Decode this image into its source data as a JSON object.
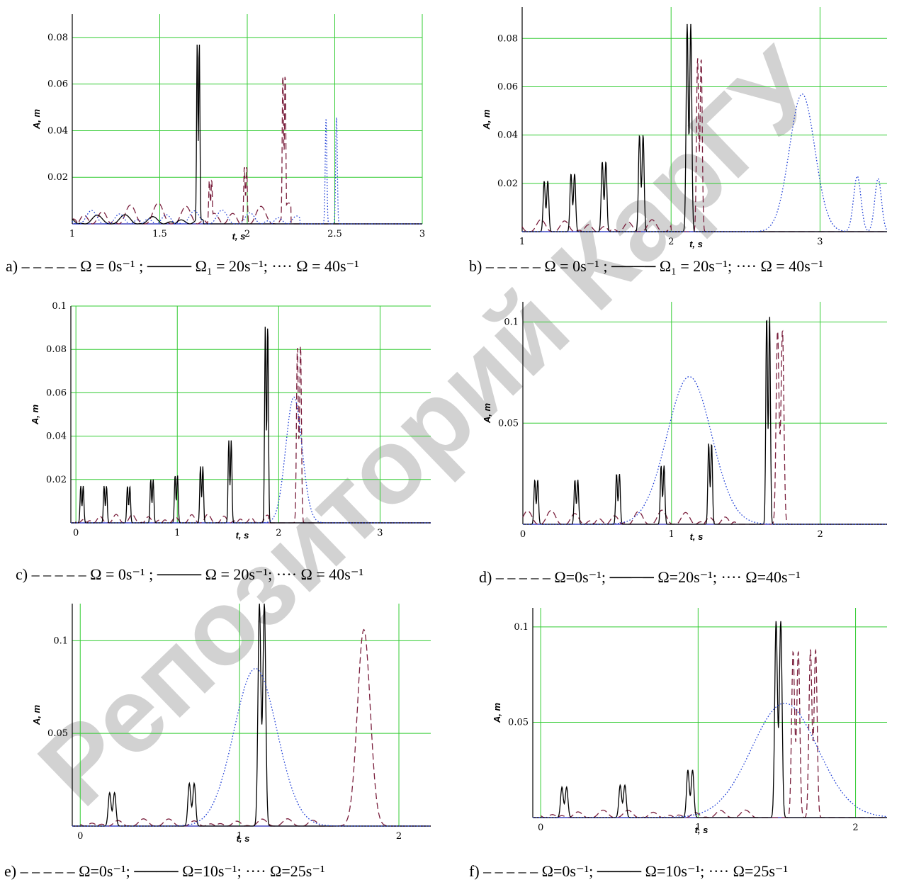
{
  "watermark": "Репозиторий КарГУ",
  "colors": {
    "grid": "#33cc33",
    "omega0": "#7a1f3d",
    "omega20": "#000000",
    "omega40": "#1f3fd6",
    "axis": "#2222aa"
  },
  "chart_data": [
    {
      "id": "a",
      "type": "line",
      "xlabel": "t, s",
      "ylabel": "A, m",
      "xlim": [
        1,
        3
      ],
      "ylim": [
        0,
        0.09
      ],
      "xticks": [
        "1",
        "1.5",
        "2",
        "2.5",
        "3"
      ],
      "xtick_values": [
        1,
        1.5,
        2,
        2.5,
        3
      ],
      "yticks": [
        "0.02",
        "0.04",
        "0.06",
        "0.08"
      ],
      "ytick_values": [
        0.02,
        0.04,
        0.06,
        0.08
      ],
      "caption": {
        "prefix": "a)",
        "s1": "Ω = 0s⁻¹ ;",
        "s2": "Ω₁ = 20s⁻¹;",
        "s3": "Ω = 40s⁻¹"
      },
      "series": [
        {
          "style": "dashed",
          "color_key": "omega0",
          "noise": 0.009,
          "noise_range": [
            1.0,
            2.25
          ],
          "peaks": [
            [
              1.79,
              0.019,
              0.012
            ],
            [
              1.99,
              0.025,
              0.012
            ],
            [
              2.21,
              0.065,
              0.012
            ]
          ]
        },
        {
          "style": "solid",
          "color_key": "omega20",
          "noise": 0.004,
          "noise_range": [
            1.0,
            1.75
          ],
          "peaks": [
            [
              1.72,
              0.078,
              0.011
            ]
          ]
        },
        {
          "style": "dotted",
          "color_key": "omega40",
          "noise": 0.006,
          "noise_range": [
            1.0,
            2.3
          ],
          "peaks": [
            [
              2.45,
              0.046,
              0.009
            ],
            [
              2.51,
              0.047,
              0.009
            ]
          ]
        }
      ]
    },
    {
      "id": "b",
      "type": "line",
      "xlabel": "t, s",
      "ylabel": "A, m",
      "xlim": [
        1,
        3.45
      ],
      "ylim": [
        0,
        0.093
      ],
      "xticks": [
        "1",
        "2",
        "3"
      ],
      "xtick_values": [
        1,
        2,
        3
      ],
      "yticks": [
        "0.02",
        "0.04",
        "0.06",
        "0.08"
      ],
      "ytick_values": [
        0.02,
        0.04,
        0.06,
        0.08
      ],
      "caption": {
        "prefix": "b)",
        "s1": "Ω = 0s⁻¹ ;",
        "s2": "Ω₁ = 20s⁻¹;",
        "s3": "Ω = 40s⁻¹"
      },
      "series": [
        {
          "style": "dashed",
          "color_key": "omega0",
          "noise": 0.005,
          "noise_range": [
            1.0,
            2.0
          ],
          "peaks": [
            [
              2.19,
              0.072,
              0.022
            ]
          ]
        },
        {
          "style": "solid",
          "color_key": "omega20",
          "noise": 0.0,
          "noise_range": [
            1.0,
            1.0
          ],
          "peaks": [
            [
              1.16,
              0.021,
              0.022
            ],
            [
              1.34,
              0.024,
              0.022
            ],
            [
              1.55,
              0.029,
              0.022
            ],
            [
              1.8,
              0.04,
              0.022
            ],
            [
              2.12,
              0.086,
              0.022
            ]
          ]
        },
        {
          "style": "dotted",
          "color_key": "omega40",
          "noise": 0.0,
          "noise_range": [
            1.0,
            1.0
          ],
          "peaks": [
            [
              2.88,
              0.057,
              0.17
            ],
            [
              3.25,
              0.023,
              0.05
            ],
            [
              3.39,
              0.022,
              0.045
            ]
          ]
        }
      ]
    },
    {
      "id": "c",
      "type": "line",
      "xlabel": "t, s",
      "ylabel": "A, m",
      "xlim": [
        -0.05,
        3.5
      ],
      "ylim": [
        0,
        0.1
      ],
      "xticks": [
        "0",
        "1",
        "2",
        "3"
      ],
      "xtick_values": [
        0,
        1,
        2,
        3
      ],
      "yticks": [
        "0.02",
        "0.04",
        "0.06",
        "0.08",
        "0.1"
      ],
      "ytick_values": [
        0.02,
        0.04,
        0.06,
        0.08,
        0.1
      ],
      "caption": {
        "prefix": "c)",
        "s1": "Ω = 0s⁻¹ ;",
        "s2": "Ω = 20s⁻¹;",
        "s3": "Ω = 40s⁻¹"
      },
      "series": [
        {
          "style": "dashed",
          "color_key": "omega0",
          "noise": 0.004,
          "noise_range": [
            0.0,
            1.9
          ],
          "peaks": [
            [
              2.2,
              0.082,
              0.028
            ]
          ]
        },
        {
          "style": "solid",
          "color_key": "omega20",
          "noise": 0.0,
          "noise_range": [
            0.0,
            0.0
          ],
          "peaks": [
            [
              0.06,
              0.017,
              0.022
            ],
            [
              0.29,
              0.017,
              0.022
            ],
            [
              0.52,
              0.017,
              0.022
            ],
            [
              0.75,
              0.02,
              0.022
            ],
            [
              0.99,
              0.022,
              0.022
            ],
            [
              1.24,
              0.026,
              0.022
            ],
            [
              1.52,
              0.038,
              0.022
            ],
            [
              1.88,
              0.091,
              0.022
            ]
          ]
        },
        {
          "style": "dotted",
          "color_key": "omega40",
          "noise": 0.0,
          "noise_range": [
            0.0,
            0.0
          ],
          "peaks": [
            [
              2.15,
              0.058,
              0.16
            ]
          ]
        }
      ]
    },
    {
      "id": "d",
      "type": "line",
      "xlabel": "t, s",
      "ylabel": "A, m",
      "xlim": [
        0,
        2.45
      ],
      "ylim": [
        0,
        0.11
      ],
      "xticks": [
        "0",
        "1",
        "2"
      ],
      "xtick_values": [
        0,
        1,
        2
      ],
      "yticks": [
        "0.05",
        "0.1"
      ],
      "ytick_values": [
        0.05,
        0.1
      ],
      "caption": {
        "prefix": "d)",
        "s1": "Ω=0s⁻¹;",
        "s2": "Ω=20s⁻¹;",
        "s3": "Ω=40s⁻¹"
      },
      "series": [
        {
          "style": "dashed",
          "color_key": "omega0",
          "noise": 0.007,
          "noise_range": [
            0.0,
            1.45
          ],
          "peaks": [
            [
              1.73,
              0.096,
              0.03
            ]
          ]
        },
        {
          "style": "solid",
          "color_key": "omega20",
          "noise": 0.0,
          "noise_range": [
            0.0,
            0.0
          ],
          "peaks": [
            [
              0.09,
              0.022,
              0.018
            ],
            [
              0.36,
              0.022,
              0.018
            ],
            [
              0.64,
              0.025,
              0.018
            ],
            [
              0.94,
              0.029,
              0.018
            ],
            [
              1.26,
              0.04,
              0.018
            ],
            [
              1.65,
              0.103,
              0.018
            ]
          ]
        },
        {
          "style": "dotted",
          "color_key": "omega40",
          "noise": 0.0,
          "noise_range": [
            0.0,
            0.0
          ],
          "peaks": [
            [
              1.12,
              0.073,
              0.3
            ]
          ]
        }
      ]
    },
    {
      "id": "e",
      "type": "line",
      "xlabel": "t, s",
      "ylabel": "A, m",
      "xlim": [
        -0.05,
        2.2
      ],
      "ylim": [
        0,
        0.12
      ],
      "xticks": [
        "0",
        "1",
        "2"
      ],
      "xtick_values": [
        0,
        1,
        2
      ],
      "yticks": [
        "0.05",
        "0.1"
      ],
      "ytick_values": [
        0.05,
        0.1
      ],
      "caption": {
        "prefix": "e)",
        "s1": "Ω=0s⁻¹;",
        "s2": "Ω=10s⁻¹;",
        "s3": "Ω=25s⁻¹"
      },
      "series": [
        {
          "style": "dashed",
          "color_key": "omega0",
          "noise": 0.004,
          "noise_range": [
            0.0,
            1.5
          ],
          "peaks": [
            [
              1.78,
              0.106,
              0.08
            ]
          ]
        },
        {
          "style": "solid",
          "color_key": "omega20",
          "noise": 0.0,
          "noise_range": [
            0.0,
            0.0
          ],
          "peaks": [
            [
              0.2,
              0.018,
              0.028
            ],
            [
              0.7,
              0.023,
              0.028
            ],
            [
              1.14,
              0.12,
              0.028
            ]
          ]
        },
        {
          "style": "dotted",
          "color_key": "omega40",
          "noise": 0.0,
          "noise_range": [
            0.0,
            0.0
          ],
          "peaks": [
            [
              1.1,
              0.085,
              0.27
            ]
          ]
        }
      ]
    },
    {
      "id": "f",
      "type": "line",
      "xlabel": "t, s",
      "ylabel": "A, m",
      "xlim": [
        -0.05,
        2.2
      ],
      "ylim": [
        0,
        0.11
      ],
      "xticks": [
        "0",
        "1",
        "2"
      ],
      "xtick_values": [
        0,
        1,
        2
      ],
      "yticks": [
        "0.05",
        "0.1"
      ],
      "ytick_values": [
        0.05,
        0.1
      ],
      "caption": {
        "prefix": "f)",
        "s1": "Ω=0s⁻¹;",
        "s2": "Ω=10s⁻¹;",
        "s3": "Ω=25s⁻¹"
      },
      "series": [
        {
          "style": "dashed",
          "color_key": "omega0",
          "noise": 0.004,
          "noise_range": [
            0.0,
            1.4
          ],
          "peaks": [
            [
              1.62,
              0.087,
              0.03
            ],
            [
              1.73,
              0.088,
              0.03
            ]
          ]
        },
        {
          "style": "solid",
          "color_key": "omega20",
          "noise": 0.0,
          "noise_range": [
            0.0,
            0.0
          ],
          "peaks": [
            [
              0.15,
              0.016,
              0.027
            ],
            [
              0.52,
              0.017,
              0.027
            ],
            [
              0.95,
              0.025,
              0.027
            ],
            [
              1.51,
              0.103,
              0.027
            ]
          ]
        },
        {
          "style": "dotted",
          "color_key": "omega40",
          "noise": 0.0,
          "noise_range": [
            0.0,
            0.0
          ],
          "peaks": [
            [
              1.55,
              0.06,
              0.42
            ]
          ]
        }
      ]
    }
  ]
}
